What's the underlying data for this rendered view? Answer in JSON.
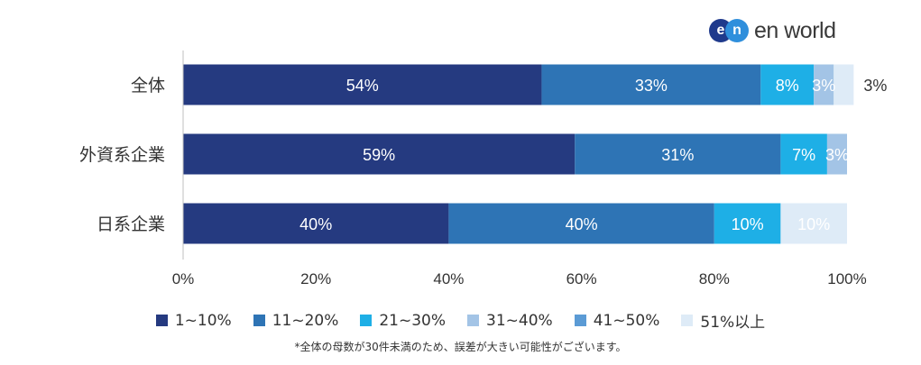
{
  "brand": {
    "logo_mark_left": "e",
    "logo_mark_right": "n",
    "logo_text": "en world"
  },
  "chart_data": {
    "type": "bar",
    "orientation": "horizontal",
    "stacked": true,
    "categories": [
      "全体",
      "外資系企業",
      "日系企業"
    ],
    "series": [
      {
        "name": "1~10%",
        "color": "#253a80",
        "values": [
          54,
          59,
          40
        ],
        "labels": [
          "54%",
          "59%",
          "40%"
        ]
      },
      {
        "name": "11~20%",
        "color": "#2e74b5",
        "values": [
          33,
          31,
          40
        ],
        "labels": [
          "33%",
          "31%",
          "40%"
        ]
      },
      {
        "name": "21~30%",
        "color": "#1eafe6",
        "values": [
          8,
          7,
          10
        ],
        "labels": [
          "8%",
          "7%",
          "10%"
        ]
      },
      {
        "name": "31~40%",
        "color": "#a3c4e6",
        "values": [
          3,
          3,
          0
        ],
        "labels": [
          "3%",
          "3%",
          ""
        ]
      },
      {
        "name": "41~50%",
        "color": "#5b9bd5",
        "values": [
          0,
          0,
          0
        ],
        "labels": [
          "",
          "",
          ""
        ]
      },
      {
        "name": "51%以上",
        "color": "#deebf7",
        "values": [
          3,
          0,
          10
        ],
        "labels": [
          "3%",
          "",
          "10%"
        ]
      }
    ],
    "xlim": [
      0,
      100
    ],
    "xticks": [
      "0%",
      "20%",
      "40%",
      "60%",
      "80%",
      "100%"
    ],
    "grid": false,
    "legend_position": "bottom"
  },
  "footnote": "*全体の母数が30件未満のため、誤差が大きい可能性がございます。"
}
